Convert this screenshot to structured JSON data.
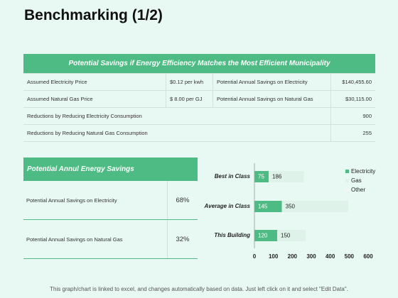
{
  "page": {
    "title": "Benchmarking (1/2)"
  },
  "top_table": {
    "header": "Potential Savings if Energy Efficiency Matches the Most Efficient  Municipality",
    "rows": [
      {
        "label": "Assumed Electricity Price",
        "value": "$0.12 per kwh",
        "label2": "Potential Annual Savings  on Electricity",
        "value2": "$140,455.60"
      },
      {
        "label": "Assumed Natural Gas Price",
        "value": "$ 8.00 per GJ",
        "label2": "Potential Annual Savings  on Natural Gas",
        "value2": "$30,115.00"
      },
      {
        "label": "Reductions  by Reducing Electricity Consumption",
        "value2": "900"
      },
      {
        "label": "Reductions  by Reducing Natural  Gas Consumption",
        "value2": "255"
      }
    ]
  },
  "savings_panel": {
    "header": "Potential Annul Energy Savings",
    "rows": [
      {
        "label": "Potential Annual Savings  on Electricity",
        "pct": "68%"
      },
      {
        "label": "Potential Annual Savings  on Natural Gas",
        "pct": "32%"
      }
    ]
  },
  "chart_data": {
    "type": "bar",
    "orientation": "horizontal",
    "stacked": true,
    "categories": [
      "Best in Class",
      "Average in Class",
      "This Building"
    ],
    "series": [
      {
        "name": "Electricity",
        "values": [
          75,
          145,
          120
        ],
        "color": "#4fbb84"
      },
      {
        "name": "Gas",
        "values": [
          186,
          350,
          150
        ],
        "color": "#dff2ea"
      },
      {
        "name": "Other",
        "values": [
          0,
          0,
          0
        ],
        "color": "#f0f8f5"
      }
    ],
    "xlim": [
      0,
      600
    ],
    "xticks": [
      "0",
      "100",
      "200",
      "300",
      "400",
      "500",
      "600"
    ],
    "legend": "right",
    "grid": false
  },
  "footer": {
    "text": "This graph/chart is linked to excel, and changes automatically based on data. Just left click on it and select \"Edit Data\"."
  }
}
